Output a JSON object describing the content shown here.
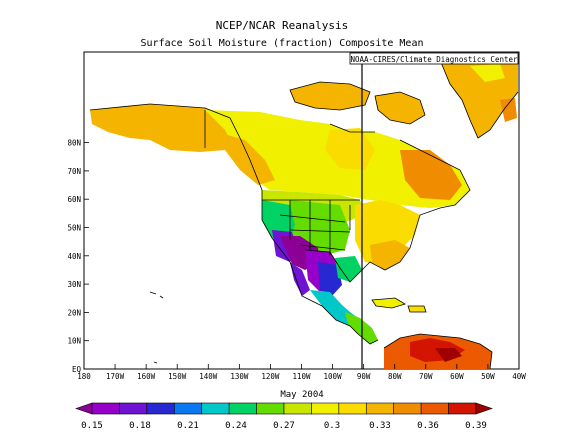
{
  "title": "NCEP/NCAR Reanalysis",
  "subtitle": "Surface Soil Moisture (fraction) Composite Mean",
  "credit": "NOAA-CIRES/Climate Diagnostics Center",
  "period": "May 2004",
  "lat_labels": [
    "80N",
    "70N",
    "60N",
    "50N",
    "40N",
    "30N",
    "20N",
    "10N",
    "EQ"
  ],
  "lon_labels": [
    "180",
    "170W",
    "160W",
    "150W",
    "140W",
    "130W",
    "120W",
    "110W",
    "100W",
    "90W",
    "80W",
    "70W",
    "60W",
    "50W",
    "40W"
  ],
  "colorbar": {
    "labels": [
      "0.15",
      "0.18",
      "0.21",
      "0.24",
      "0.27",
      "0.3",
      "0.33",
      "0.36",
      "0.39"
    ],
    "colors": [
      "#8c0096",
      "#9600c8",
      "#6e14d2",
      "#2828d2",
      "#0a78f0",
      "#00c8c8",
      "#00d264",
      "#64dc00",
      "#c8e600",
      "#f0f000",
      "#fadc00",
      "#f5b400",
      "#f08c00",
      "#eb5a00",
      "#d21400",
      "#a00000"
    ]
  }
}
